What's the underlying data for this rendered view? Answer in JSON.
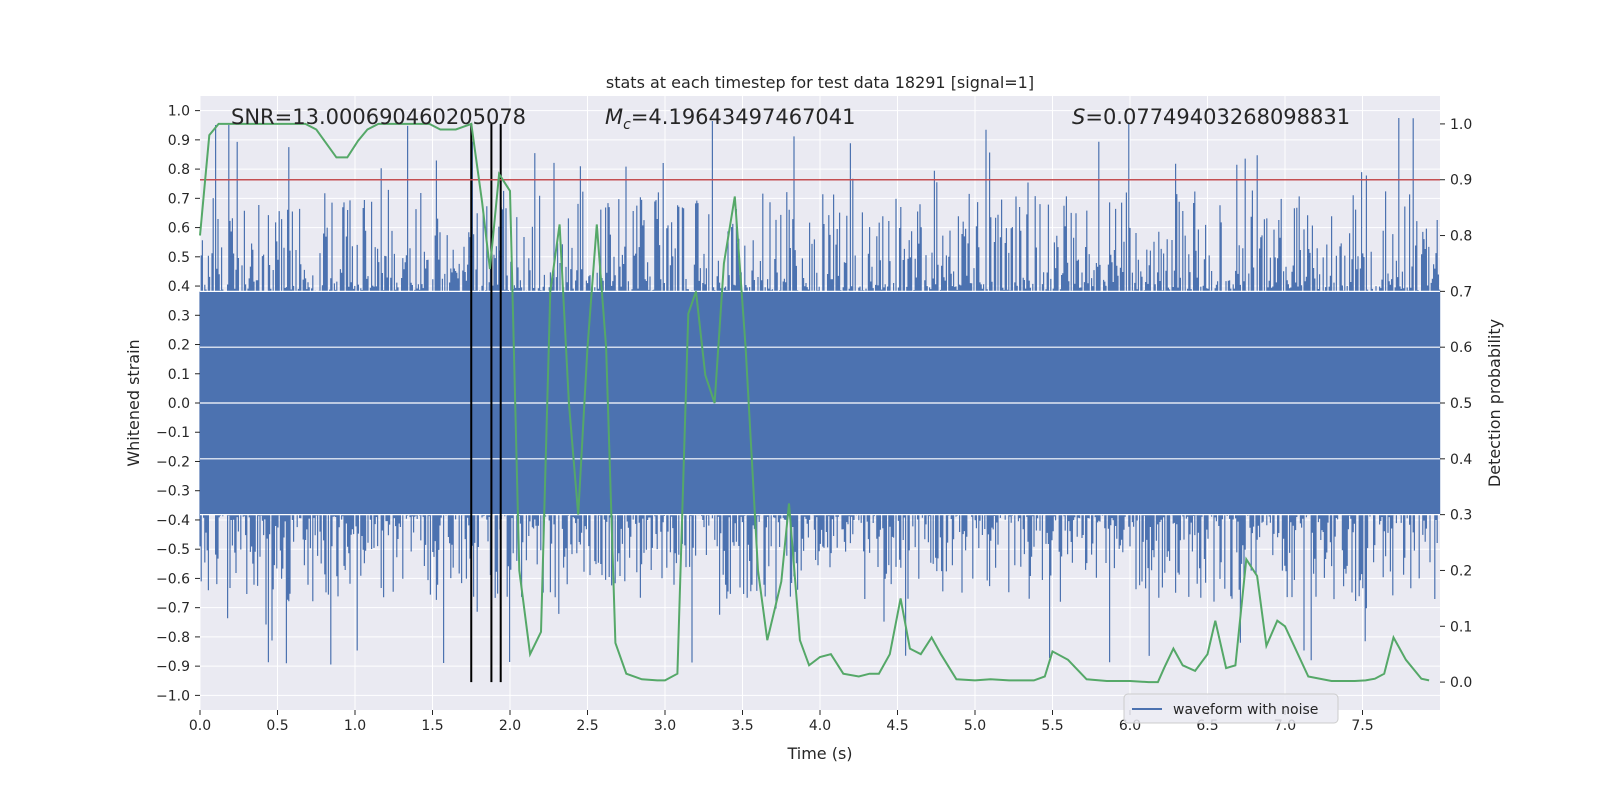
{
  "chart_data": {
    "type": "line",
    "title": "stats at each timestep for test data 18291 [signal=1]",
    "xlabel": "Time (s)",
    "ylabel_left": "Whitened strain",
    "ylabel_right": "Detection probability",
    "xlim": [
      0.0,
      8.0
    ],
    "ylim_left": [
      -1.05,
      1.05
    ],
    "ylim_right": [
      -0.05,
      1.05
    ],
    "x_ticks": [
      "0.0",
      "0.5",
      "1.0",
      "1.5",
      "2.0",
      "2.5",
      "3.0",
      "3.5",
      "4.0",
      "4.5",
      "5.0",
      "5.5",
      "6.0",
      "6.5",
      "7.0",
      "7.5"
    ],
    "y_left_ticks": [
      "1.0",
      "0.9",
      "0.8",
      "0.7",
      "0.6",
      "0.5",
      "0.4",
      "0.3",
      "0.2",
      "0.1",
      "0.0",
      "−0.1",
      "−0.2",
      "−0.3",
      "−0.4",
      "−0.5",
      "−0.6",
      "−0.7",
      "−0.8",
      "−0.9",
      "−1.0"
    ],
    "y_right_ticks": [
      "1.0",
      "0.9",
      "0.8",
      "0.7",
      "0.6",
      "0.5",
      "0.4",
      "0.3",
      "0.2",
      "0.1",
      "0.0"
    ],
    "annotations": {
      "snr": "SNR=13.000690460205078",
      "mc_symbol": "M",
      "mc_subscript": "c",
      "mc_value": "=4.19643497467041",
      "s_symbol": "S",
      "s_value": "=0.07749403268098831"
    },
    "threshold_probability": 0.9,
    "vertical_markers_s": [
      1.75,
      1.88,
      1.94
    ],
    "legend": [
      "waveform with noise"
    ],
    "colors": {
      "waveform": "#4c72b0",
      "probability": "#55a868",
      "threshold": "#c44e52",
      "markers": "#000000",
      "plot_bg": "#eaeaf2",
      "grid": "#ffffff"
    },
    "series": [
      {
        "name": "detection probability",
        "axis": "right",
        "x": [
          0.0,
          0.06,
          0.12,
          0.3,
          0.5,
          0.68,
          0.75,
          0.88,
          0.95,
          1.02,
          1.08,
          1.15,
          1.3,
          1.48,
          1.55,
          1.65,
          1.75,
          1.82,
          1.87,
          1.93,
          2.0,
          2.06,
          2.13,
          2.2,
          2.26,
          2.32,
          2.38,
          2.44,
          2.5,
          2.56,
          2.62,
          2.68,
          2.75,
          2.85,
          2.95,
          3.0,
          3.08,
          3.15,
          3.2,
          3.26,
          3.32,
          3.38,
          3.45,
          3.52,
          3.6,
          3.66,
          3.75,
          3.8,
          3.87,
          3.93,
          4.0,
          4.07,
          4.15,
          4.25,
          4.32,
          4.38,
          4.45,
          4.52,
          4.58,
          4.65,
          4.72,
          4.78,
          4.88,
          5.0,
          5.1,
          5.22,
          5.3,
          5.38,
          5.45,
          5.5,
          5.6,
          5.72,
          5.85,
          6.0,
          6.12,
          6.18,
          6.22,
          6.28,
          6.34,
          6.42,
          6.5,
          6.55,
          6.62,
          6.68,
          6.75,
          6.82,
          6.88,
          6.95,
          7.0,
          7.15,
          7.3,
          7.45,
          7.52,
          7.58,
          7.64,
          7.7,
          7.78,
          7.88,
          7.93
        ],
        "values": [
          0.8,
          0.98,
          1.0,
          1.0,
          1.0,
          1.0,
          0.99,
          0.94,
          0.94,
          0.97,
          0.99,
          1.0,
          1.0,
          1.0,
          0.99,
          0.99,
          1.0,
          0.86,
          0.74,
          0.91,
          0.88,
          0.2,
          0.05,
          0.09,
          0.7,
          0.82,
          0.5,
          0.3,
          0.6,
          0.82,
          0.6,
          0.07,
          0.015,
          0.005,
          0.003,
          0.003,
          0.015,
          0.66,
          0.7,
          0.55,
          0.5,
          0.75,
          0.87,
          0.6,
          0.2,
          0.075,
          0.18,
          0.32,
          0.075,
          0.03,
          0.045,
          0.05,
          0.015,
          0.01,
          0.015,
          0.015,
          0.05,
          0.15,
          0.06,
          0.05,
          0.08,
          0.05,
          0.005,
          0.003,
          0.005,
          0.003,
          0.003,
          0.003,
          0.01,
          0.055,
          0.04,
          0.005,
          0.002,
          0.002,
          0.0,
          0.0,
          0.025,
          0.06,
          0.03,
          0.02,
          0.05,
          0.11,
          0.025,
          0.03,
          0.22,
          0.19,
          0.065,
          0.11,
          0.1,
          0.01,
          0.002,
          0.002,
          0.003,
          0.006,
          0.015,
          0.08,
          0.04,
          0.006,
          0.003
        ]
      }
    ]
  }
}
